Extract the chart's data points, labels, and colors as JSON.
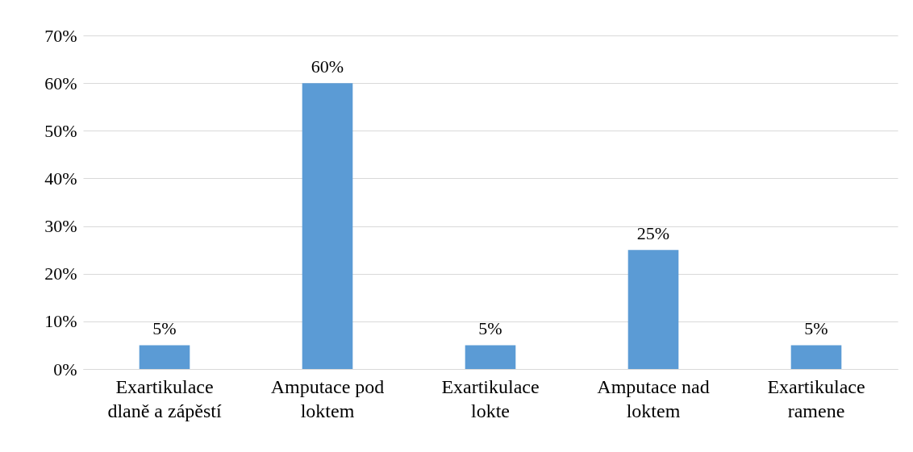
{
  "chart_data": {
    "type": "bar",
    "categories": [
      "Exartikulace dlaně a zápěstí",
      "Amputace pod loktem",
      "Exartikulace lokte",
      "Amputace nad loktem",
      "Exartikulace ramene"
    ],
    "values": [
      5,
      60,
      5,
      25,
      5
    ],
    "value_labels": [
      "5%",
      "60%",
      "5%",
      "25%",
      "5%"
    ],
    "color": "#5b9bd5",
    "ylim": [
      0,
      70
    ],
    "yticks": [
      {
        "value": 0,
        "label": "0%"
      },
      {
        "value": 10,
        "label": "10%"
      },
      {
        "value": 20,
        "label": "20%"
      },
      {
        "value": 30,
        "label": "30%"
      },
      {
        "value": 40,
        "label": "40%"
      },
      {
        "value": 50,
        "label": "50%"
      },
      {
        "value": 60,
        "label": "60%"
      },
      {
        "value": 70,
        "label": "70%"
      }
    ],
    "grid": "y"
  }
}
